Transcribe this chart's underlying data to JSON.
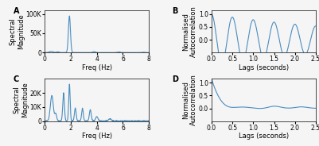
{
  "line_color": "#4a8dbf",
  "line_width": 0.8,
  "background_color": "#f5f5f5",
  "panel_labels": [
    "A",
    "B",
    "C",
    "D"
  ],
  "panel_label_fontsize": 7,
  "tick_fontsize": 5.5,
  "axis_label_fontsize": 6.0,
  "subplot_label_weight": "bold",
  "figsize": [
    4.01,
    1.84
  ],
  "dpi": 100
}
